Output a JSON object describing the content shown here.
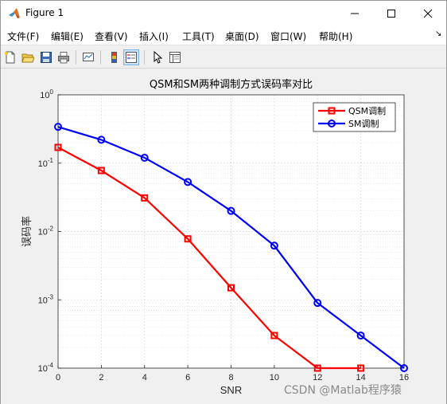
{
  "window": {
    "title": "Figure 1"
  },
  "menu": [
    {
      "label": "文件(F)"
    },
    {
      "label": "编辑(E)"
    },
    {
      "label": "查看(V)"
    },
    {
      "label": "插入(I)"
    },
    {
      "label": "工具(T)"
    },
    {
      "label": "桌面(D)"
    },
    {
      "label": "窗口(W)"
    },
    {
      "label": "帮助(H)"
    }
  ],
  "toolbar": [
    {
      "icon": "new-file-icon"
    },
    {
      "icon": "open-folder-icon"
    },
    {
      "icon": "save-icon"
    },
    {
      "icon": "print-icon"
    },
    {
      "icon": "link-plot-icon"
    },
    {
      "icon": "colorbar-icon"
    },
    {
      "icon": "legend-icon"
    },
    {
      "icon": "pointer-icon"
    },
    {
      "icon": "property-editor-icon"
    }
  ],
  "watermark": "CSDN @Matlab程序猿",
  "colors": {
    "series1": "#ff0000",
    "series2": "#0000ff",
    "grid": "#dcdcdc"
  },
  "chart_data": {
    "type": "line",
    "title": "QSM和SM两种调制方式误码率对比",
    "xlabel": "SNR",
    "ylabel": "误码率",
    "xlim": [
      0,
      16
    ],
    "ylim": [
      0.0001,
      1
    ],
    "yscale": "log",
    "grid": true,
    "legend_position": "top-right",
    "x_ticks": [
      "0",
      "2",
      "4",
      "6",
      "8",
      "10",
      "12",
      "14",
      "16"
    ],
    "y_ticks": [
      {
        "base": "10",
        "exp": "0"
      },
      {
        "base": "10",
        "exp": "-1"
      },
      {
        "base": "10",
        "exp": "-2"
      },
      {
        "base": "10",
        "exp": "-3"
      },
      {
        "base": "10",
        "exp": "-4"
      }
    ],
    "series": [
      {
        "name": "QSM调制",
        "color": "#ff0000",
        "marker": "square",
        "x": [
          0,
          2,
          4,
          6,
          8,
          10,
          12,
          14
        ],
        "y": [
          0.17,
          0.078,
          0.031,
          0.0078,
          0.0015,
          0.0003,
          0.0001,
          0.0001
        ]
      },
      {
        "name": "SM调制",
        "color": "#0000ff",
        "marker": "circle",
        "x": [
          0,
          2,
          4,
          6,
          8,
          10,
          12,
          14,
          16
        ],
        "y": [
          0.34,
          0.22,
          0.12,
          0.053,
          0.02,
          0.0062,
          0.0009,
          0.0003,
          0.0001
        ]
      }
    ]
  }
}
